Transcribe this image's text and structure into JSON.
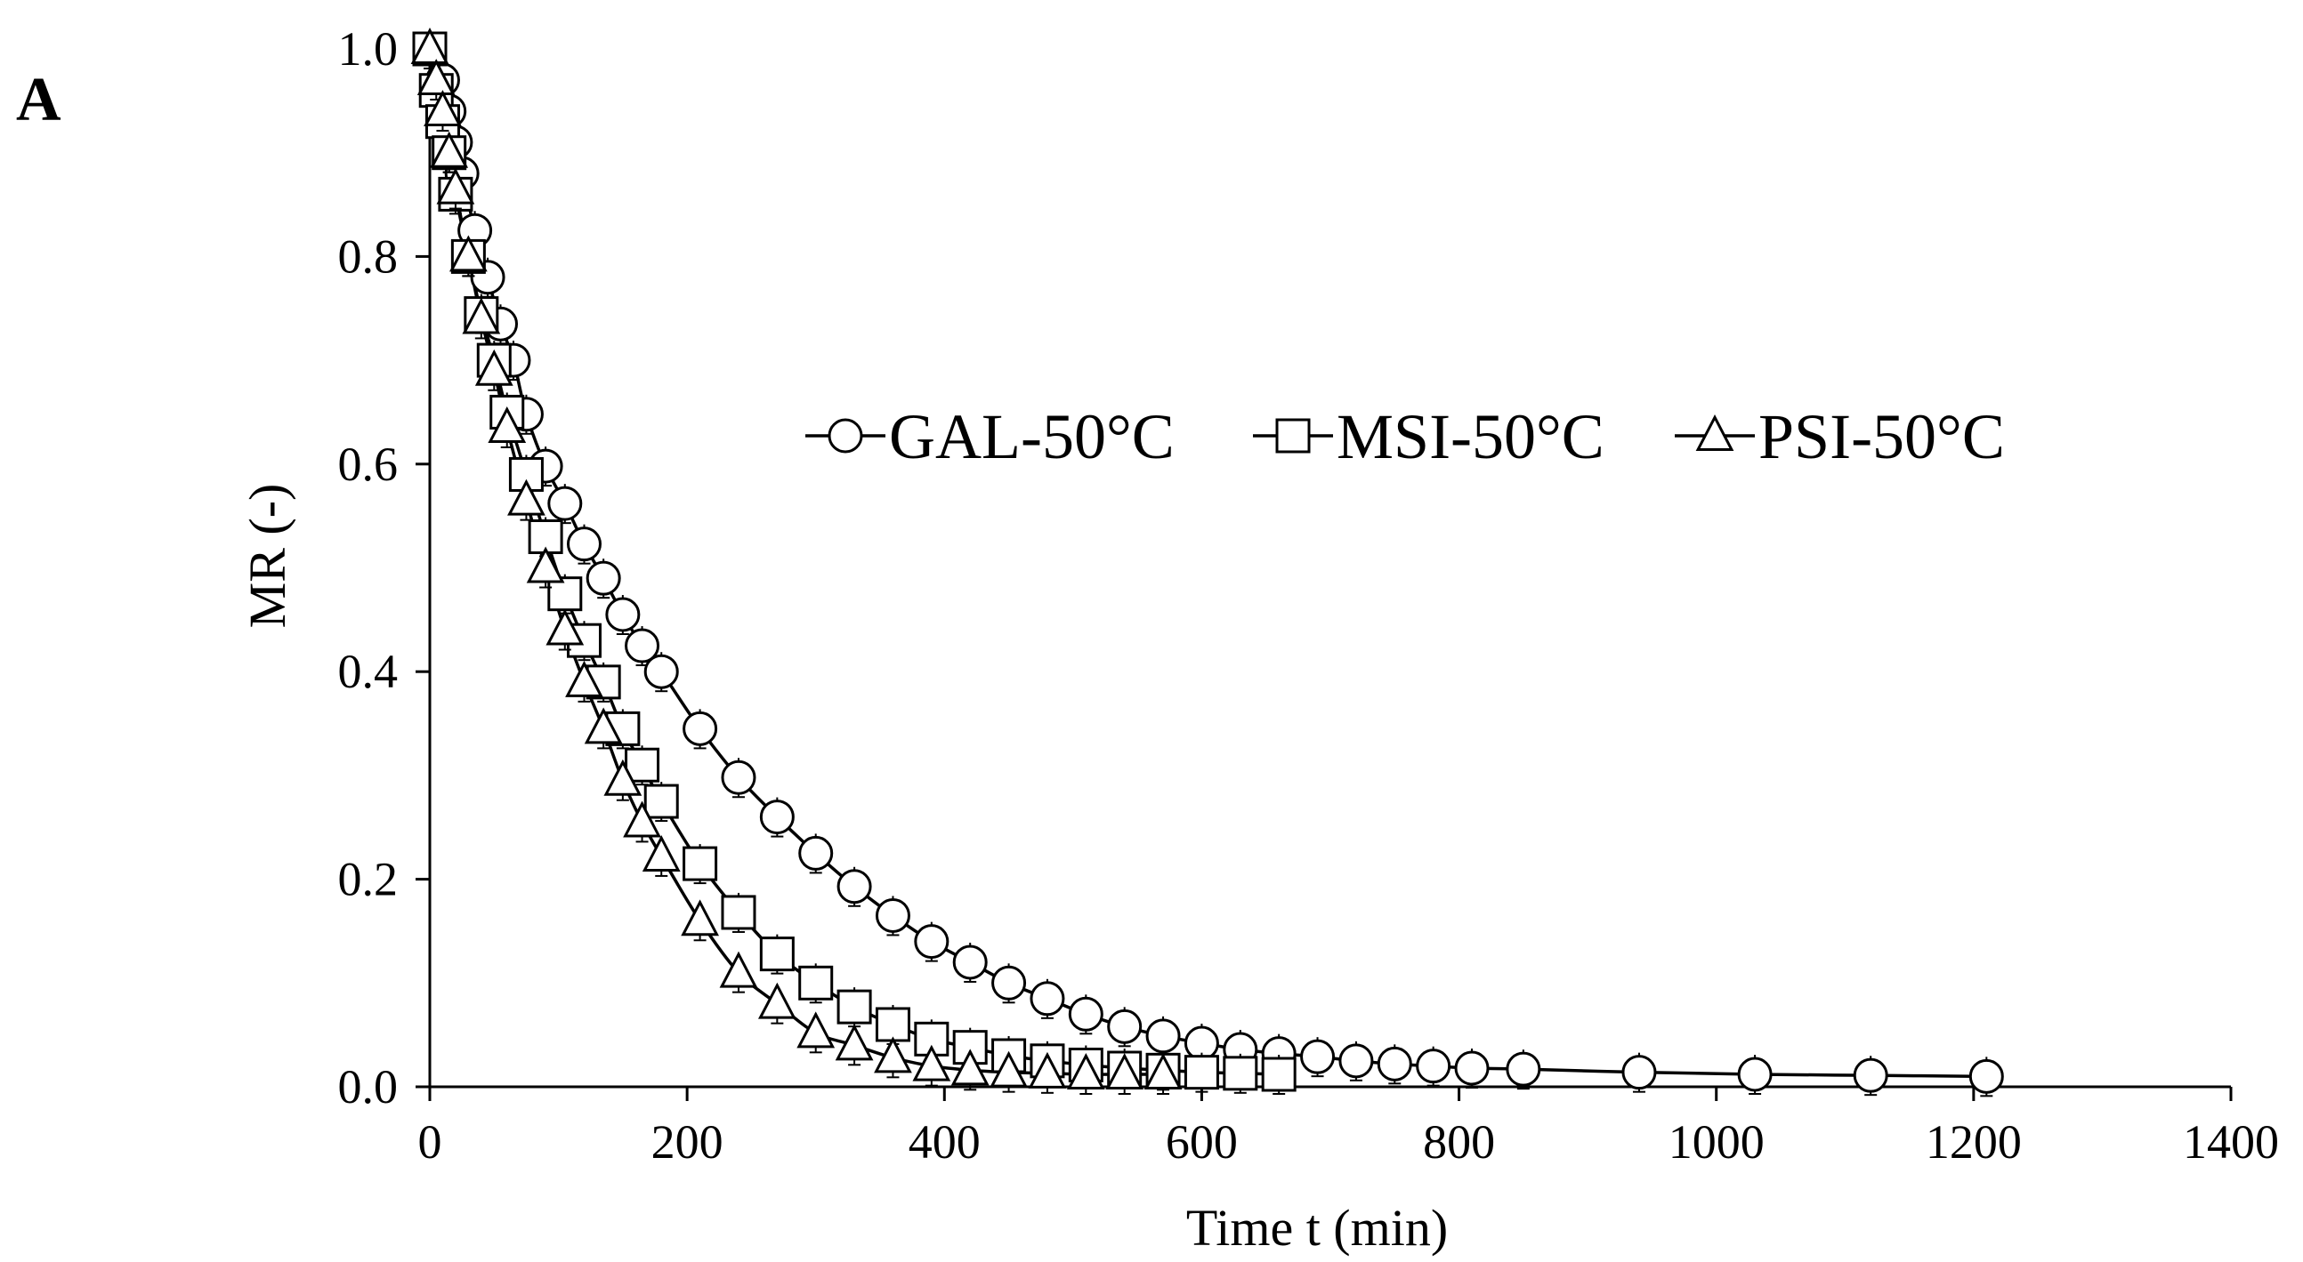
{
  "panel_label": "A",
  "chart_data": {
    "type": "scatter",
    "title": "",
    "xlabel": "Time t (min)",
    "ylabel": "MR (-)",
    "xlim": [
      0,
      1400
    ],
    "ylim": [
      0,
      1.0
    ],
    "xticks": [
      0,
      200,
      400,
      600,
      800,
      1000,
      1200,
      1400
    ],
    "yticks": [
      0.0,
      0.2,
      0.4,
      0.6,
      0.8,
      1.0
    ],
    "xtick_labels": [
      "0",
      "200",
      "400",
      "600",
      "800",
      "1000",
      "1200",
      "1400"
    ],
    "ytick_labels": [
      "0.0",
      "0.2",
      "0.4",
      "0.6",
      "0.8",
      "1.0"
    ],
    "grid": false,
    "legend_position": "top-right",
    "error_bars": true,
    "series": [
      {
        "name": "GAL-50°C",
        "marker": "circle",
        "x": [
          0,
          10,
          15,
          20,
          25,
          35,
          45,
          55,
          65,
          75,
          90,
          105,
          120,
          135,
          150,
          165,
          180,
          210,
          240,
          270,
          300,
          330,
          360,
          390,
          420,
          450,
          480,
          510,
          540,
          570,
          600,
          630,
          660,
          690,
          720,
          750,
          780,
          810,
          850,
          940,
          1030,
          1120,
          1210
        ],
        "y": [
          1.0,
          0.97,
          0.94,
          0.91,
          0.88,
          0.825,
          0.78,
          0.735,
          0.7,
          0.648,
          0.598,
          0.562,
          0.523,
          0.49,
          0.455,
          0.425,
          0.4,
          0.345,
          0.298,
          0.26,
          0.225,
          0.193,
          0.165,
          0.14,
          0.12,
          0.1,
          0.085,
          0.07,
          0.058,
          0.049,
          0.042,
          0.036,
          0.032,
          0.029,
          0.025,
          0.022,
          0.02,
          0.018,
          0.017,
          0.014,
          0.012,
          0.011,
          0.01
        ]
      },
      {
        "name": "MSI-50°C",
        "marker": "square",
        "x": [
          0,
          5,
          10,
          15,
          20,
          30,
          40,
          50,
          60,
          75,
          90,
          105,
          120,
          135,
          150,
          165,
          180,
          210,
          240,
          270,
          300,
          330,
          360,
          390,
          420,
          450,
          480,
          510,
          540,
          570,
          600,
          630,
          660
        ],
        "y": [
          1.0,
          0.96,
          0.93,
          0.9,
          0.86,
          0.8,
          0.745,
          0.7,
          0.65,
          0.59,
          0.53,
          0.475,
          0.43,
          0.39,
          0.345,
          0.31,
          0.275,
          0.215,
          0.168,
          0.128,
          0.1,
          0.077,
          0.06,
          0.046,
          0.038,
          0.03,
          0.025,
          0.021,
          0.018,
          0.016,
          0.014,
          0.013,
          0.012
        ]
      },
      {
        "name": "PSI-50°C",
        "marker": "triangle",
        "x": [
          0,
          5,
          10,
          15,
          20,
          30,
          40,
          50,
          60,
          75,
          90,
          105,
          120,
          135,
          150,
          165,
          180,
          210,
          240,
          270,
          300,
          330,
          360,
          390,
          420,
          450,
          480,
          510,
          540,
          570
        ],
        "y": [
          1.0,
          0.97,
          0.94,
          0.9,
          0.865,
          0.8,
          0.74,
          0.69,
          0.635,
          0.565,
          0.5,
          0.44,
          0.39,
          0.345,
          0.295,
          0.255,
          0.222,
          0.16,
          0.11,
          0.08,
          0.052,
          0.04,
          0.028,
          0.02,
          0.016,
          0.014,
          0.013,
          0.012,
          0.012,
          0.012
        ]
      }
    ]
  }
}
